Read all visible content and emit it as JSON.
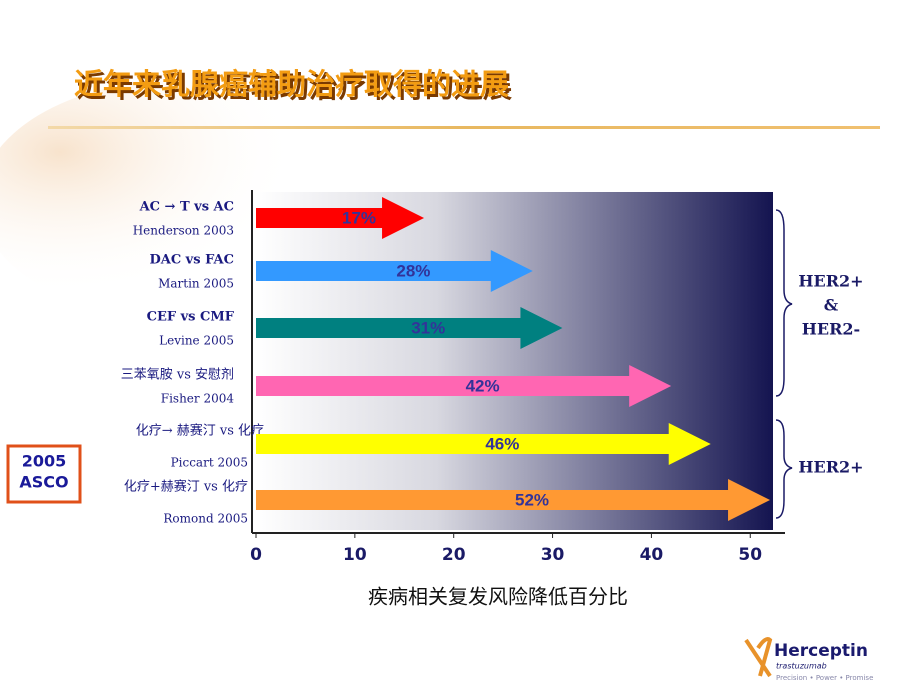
{
  "chart_data": {
    "type": "arrowbar",
    "title": "近年来乳腺癌辅助治疗取得的进展",
    "xlabel": "疾病相关复发风险降低百分比",
    "categories": [
      "AC → T vs AC",
      "DAC vs FAC",
      "CEF vs CMF",
      "三苯氧胺 vs 安慰剂",
      "化疗→   赫赛汀  vs  化疗",
      "化疗+赫赛汀  vs  化疗"
    ],
    "references": [
      "Henderson 2003",
      "Martin 2005",
      "Levine 2005",
      "Fisher 2004",
      "Piccart 2005",
      "Romond 2005"
    ],
    "values": [
      17,
      28,
      31,
      42,
      46,
      52
    ],
    "value_labels": [
      "17%",
      "28%",
      "31%",
      "42%",
      "46%",
      "52%"
    ],
    "colors": [
      "#ff0000",
      "#3399ff",
      "#008080",
      "#ff66b2",
      "#ffff00",
      "#ff9933"
    ],
    "xlim": [
      0,
      52.3
    ],
    "xticks": [
      0,
      10,
      20,
      30,
      40,
      50
    ],
    "groups": [
      [
        "HER2+",
        "&",
        "HER2-"
      ],
      [
        "HER2+"
      ]
    ],
    "badge": [
      "2005",
      "ASCO"
    ]
  },
  "logo": {
    "name": "Herceptin",
    "subtitle": "trastuzumab",
    "tagline": "Precision • Power • Promise"
  }
}
